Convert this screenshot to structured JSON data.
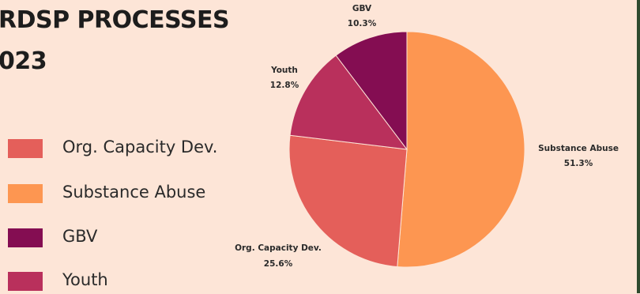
{
  "title": {
    "line1": "RDSP PROCESSES",
    "line2": "023"
  },
  "legend": {
    "items": [
      {
        "label": "Org. Capacity Dev.",
        "color": "#e45f5a"
      },
      {
        "label": "Substance Abuse",
        "color": "#fd9651"
      },
      {
        "label": "GBV",
        "color": "#840d52"
      },
      {
        "label": "Youth",
        "color": "#b9305c"
      }
    ]
  },
  "chart_data": {
    "type": "pie",
    "slices": [
      {
        "label": "Substance Abuse",
        "value": 51.3,
        "value_label": "51.3%",
        "color": "#fd9651"
      },
      {
        "label": "Org. Capacity Dev.",
        "value": 25.6,
        "value_label": "25.6%",
        "color": "#e45f5a"
      },
      {
        "label": "Youth",
        "value": 12.8,
        "value_label": "12.8%",
        "color": "#b9305c"
      },
      {
        "label": "GBV",
        "value": 10.3,
        "value_label": "10.3%",
        "color": "#840d52"
      }
    ],
    "start": "top",
    "direction": "clockwise",
    "legend_position": "left"
  }
}
